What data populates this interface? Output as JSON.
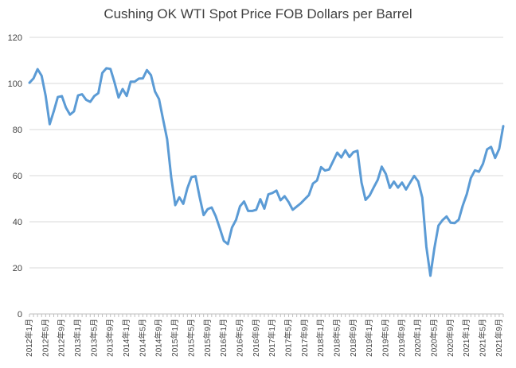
{
  "chart_data": {
    "type": "line",
    "title": "Cushing OK WTI Spot Price FOB Dollars per Barrel",
    "xlabel": "",
    "ylabel": "",
    "ylim": [
      0,
      120
    ],
    "yticks": [
      0,
      20,
      40,
      60,
      80,
      100,
      120
    ],
    "grid": {
      "y": true,
      "x": false
    },
    "legend": "none",
    "line_color": "#5B9BD5",
    "x_tick_labels": [
      "2012年1月",
      "2012年5月",
      "2012年9月",
      "2013年1月",
      "2013年5月",
      "2013年9月",
      "2014年1月",
      "2014年5月",
      "2014年9月",
      "2015年1月",
      "2015年5月",
      "2015年9月",
      "2016年1月",
      "2016年5月",
      "2016年9月",
      "2017年1月",
      "2017年5月",
      "2017年9月",
      "2018年1月",
      "2018年5月",
      "2018年9月",
      "2019年1月",
      "2019年5月",
      "2019年9月",
      "2020年1月",
      "2020年5月",
      "2020年9月",
      "2021年1月",
      "2021年5月",
      "2021年9月"
    ],
    "series": [
      {
        "start_label": "2012年1月",
        "frequency": "monthly",
        "values": [
          100.3,
          102.2,
          106.2,
          103.3,
          94.7,
          82.3,
          87.9,
          94.1,
          94.5,
          89.5,
          86.5,
          87.9,
          94.8,
          95.3,
          92.9,
          92.0,
          94.5,
          95.8,
          104.6,
          106.6,
          106.3,
          100.5,
          93.9,
          97.6,
          94.6,
          100.8,
          100.8,
          102.1,
          102.2,
          105.8,
          103.6,
          96.5,
          93.2,
          84.4,
          75.8,
          59.3,
          47.2,
          50.6,
          47.8,
          54.5,
          59.3,
          59.8,
          50.9,
          42.9,
          45.5,
          46.2,
          42.4,
          37.2,
          31.7,
          30.3,
          37.5,
          40.8,
          46.7,
          48.8,
          44.7,
          44.7,
          45.2,
          49.8,
          45.7,
          51.9,
          52.5,
          53.5,
          49.3,
          51.1,
          48.5,
          45.2,
          46.6,
          48.0,
          49.8,
          51.6,
          56.6,
          57.9,
          63.7,
          62.2,
          62.7,
          66.3,
          70.0,
          67.9,
          71.0,
          68.1,
          70.2,
          70.8,
          57.0,
          49.5,
          51.4,
          54.9,
          58.2,
          63.9,
          60.8,
          54.7,
          57.4,
          54.8,
          57.0,
          54.0,
          57.0,
          59.9,
          57.5,
          50.5,
          29.2,
          16.6,
          28.5,
          38.3,
          40.7,
          42.3,
          39.6,
          39.4,
          40.9,
          47.0,
          52.0,
          59.0,
          62.3,
          61.7,
          65.2,
          71.4,
          72.5,
          67.7,
          71.6,
          81.5
        ]
      }
    ]
  }
}
